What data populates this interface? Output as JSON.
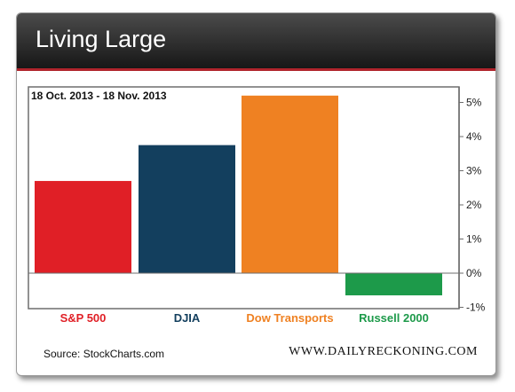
{
  "header": {
    "title": "Living Large"
  },
  "footer": {
    "source": "Source: StockCharts.com",
    "brand": "WWW.DAILYRECKONING.COM"
  },
  "chart_data": {
    "type": "bar",
    "title": "18 Oct. 2013 - 18 Nov. 2013",
    "categories": [
      "S&P 500",
      "DJIA",
      "Dow Transports",
      "Russell 2000"
    ],
    "values": [
      2.7,
      3.75,
      5.2,
      -0.65
    ],
    "colors": [
      "#e01f26",
      "#133f5e",
      "#ef8122",
      "#1d9a4a"
    ],
    "label_colors": [
      "#e01f26",
      "#133f5e",
      "#ef8122",
      "#1d9a4a"
    ],
    "yticks": [
      "5%",
      "4%",
      "3%",
      "2%",
      "1%",
      "0%",
      "-1%"
    ],
    "ytick_values": [
      5,
      4,
      3,
      2,
      1,
      0,
      -1
    ],
    "ylim": [
      -1,
      5.5
    ],
    "grid": false,
    "y_axis_position": "right"
  }
}
